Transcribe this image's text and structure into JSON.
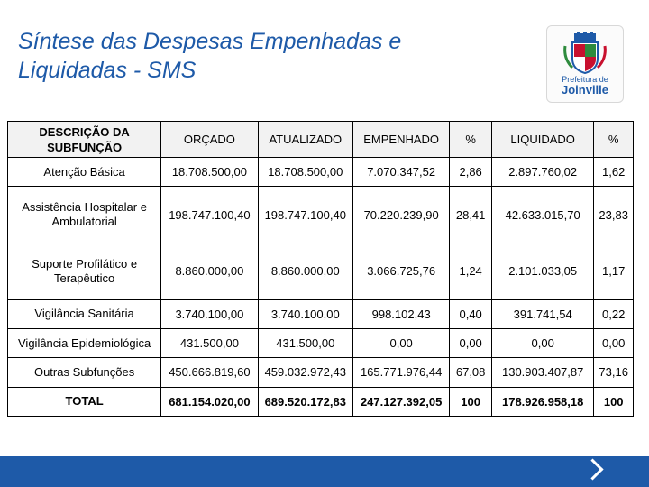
{
  "slide": {
    "title_line1": "Síntese das Despesas Empenhadas e",
    "title_line2": "Liquidadas - SMS"
  },
  "logo": {
    "line1": "Prefeitura de",
    "line2": "Joinville"
  },
  "table": {
    "headers": [
      "DESCRIÇÃO DA SUBFUNÇÃO",
      "ORÇADO",
      "ATUALIZADO",
      "EMPENHADO",
      "%",
      "LIQUIDADO",
      "%"
    ],
    "rows": [
      [
        "Atenção Básica",
        "18.708.500,00",
        "18.708.500,00",
        "7.070.347,52",
        "2,86",
        "2.897.760,02",
        "1,62"
      ],
      [
        "Assistência Hospitalar e Ambulatorial",
        "198.747.100,40",
        "198.747.100,40",
        "70.220.239,90",
        "28,41",
        "42.633.015,70",
        "23,83"
      ],
      [
        "Suporte Profilático e Terapêutico",
        "8.860.000,00",
        "8.860.000,00",
        "3.066.725,76",
        "1,24",
        "2.101.033,05",
        "1,17"
      ],
      [
        "Vigilância Sanitária",
        "3.740.100,00",
        "3.740.100,00",
        "998.102,43",
        "0,40",
        "391.741,54",
        "0,22"
      ],
      [
        "Vigilância Epidemiológica",
        "431.500,00",
        "431.500,00",
        "0,00",
        "0,00",
        "0,00",
        "0,00"
      ],
      [
        "Outras Subfunções",
        "450.666.819,60",
        "459.032.972,43",
        "165.771.976,44",
        "67,08",
        "130.903.407,87",
        "73,16"
      ],
      [
        "TOTAL",
        "681.154.020,00",
        "689.520.172,83",
        "247.127.392,05",
        "100",
        "178.926.958,18",
        "100"
      ]
    ]
  },
  "colors": {
    "accent": "#1e5aa8",
    "header_bg": "#f2f2f2"
  }
}
